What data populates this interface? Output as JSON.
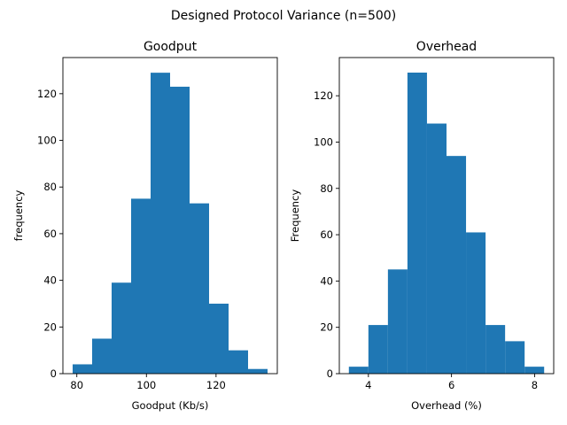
{
  "figure_title": "Designed Protocol Variance (n=500)",
  "colors": {
    "bar": "#1f77b4",
    "axis": "#000000",
    "background": "#ffffff"
  },
  "chart_data": [
    {
      "type": "bar",
      "subtype": "histogram",
      "title": "Goodput",
      "xlabel": "Goodput (Kb/s)",
      "ylabel": "frequency",
      "bin_edges": [
        78.8,
        84.4,
        90.0,
        95.6,
        101.2,
        106.8,
        112.4,
        118.0,
        123.6,
        129.2,
        134.8
      ],
      "values": [
        4,
        15,
        39,
        75,
        129,
        123,
        73,
        30,
        10,
        2
      ],
      "xlim": [
        76.0,
        137.6
      ],
      "ylim": [
        0,
        135.5
      ],
      "xticks": [
        80,
        100,
        120
      ],
      "yticks": [
        0,
        20,
        40,
        60,
        80,
        100,
        120
      ],
      "grid": false
    },
    {
      "type": "bar",
      "subtype": "histogram",
      "title": "Overhead",
      "xlabel": "Overhead (%)",
      "ylabel": "Frequency",
      "bin_edges": [
        3.53,
        4.0,
        4.47,
        4.94,
        5.41,
        5.88,
        6.35,
        6.82,
        7.29,
        7.76,
        8.23
      ],
      "values": [
        3,
        21,
        45,
        130,
        108,
        94,
        61,
        21,
        14,
        3
      ],
      "xlim": [
        3.3,
        8.46
      ],
      "ylim": [
        0,
        136.5
      ],
      "xticks": [
        4,
        6,
        8
      ],
      "yticks": [
        0,
        20,
        40,
        60,
        80,
        100,
        120
      ],
      "grid": false
    }
  ]
}
